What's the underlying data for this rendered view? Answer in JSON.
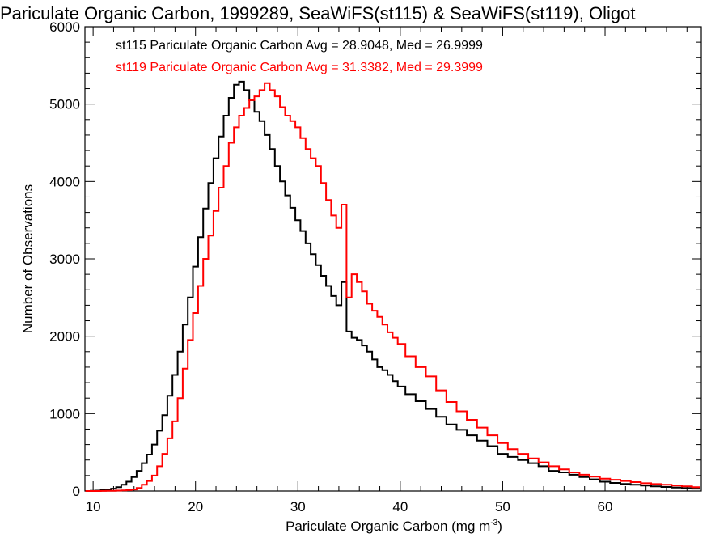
{
  "chart_data": {
    "type": "line",
    "style": "histogram-step",
    "title": "Pariculate Organic Carbon, 1999289, SeaWiFS(st115) & SeaWiFS(st119), Oligot",
    "xlabel": "Pariculate Organic Carbon (mg m",
    "xlabel_sup": "-3",
    "xlabel_close": ")",
    "ylabel": "Number of Observations",
    "xlim": [
      9.2,
      69.4
    ],
    "ylim": [
      0,
      6000
    ],
    "x_ticks": [
      10,
      20,
      30,
      40,
      50,
      60
    ],
    "x_tick_labels": [
      "10",
      "20",
      "30",
      "40",
      "50",
      "60"
    ],
    "y_ticks": [
      0,
      1000,
      2000,
      3000,
      4000,
      5000,
      6000
    ],
    "y_tick_labels": [
      "0",
      "1000",
      "2000",
      "3000",
      "4000",
      "5000",
      "6000"
    ],
    "grid": false,
    "legend_position": "top-left",
    "annotations": [
      {
        "text": "st115 Pariculate Organic Carbon Avg = 28.9048, Med = 26.9999",
        "color": "#000000"
      },
      {
        "text": "st119 Pariculate Organic Carbon Avg = 31.3382, Med = 29.3999",
        "color": "#ff0000"
      }
    ],
    "x": [
      9.5,
      10,
      10.5,
      11,
      11.5,
      12,
      12.5,
      13,
      13.5,
      14,
      14.5,
      15,
      15.5,
      16,
      16.5,
      17,
      17.5,
      18,
      18.5,
      19,
      19.5,
      20,
      20.5,
      21,
      21.5,
      22,
      22.5,
      23,
      23.5,
      24,
      24.5,
      25,
      25.5,
      26,
      26.5,
      27,
      27.5,
      28,
      28.5,
      29,
      29.5,
      30,
      30.5,
      31,
      31.5,
      32,
      32.5,
      33,
      33.5,
      34,
      34.5,
      35,
      35.5,
      36,
      36.5,
      37,
      37.5,
      38,
      38.5,
      39,
      39.5,
      40,
      41,
      42,
      43,
      44,
      45,
      46,
      47,
      48,
      49,
      50,
      51,
      52,
      53,
      54,
      55,
      56,
      57,
      58,
      59,
      60,
      61,
      62,
      63,
      64,
      65,
      66,
      67,
      68,
      69
    ],
    "series": [
      {
        "name": "st115",
        "color": "#000000",
        "values": [
          0,
          2,
          5,
          10,
          18,
          30,
          50,
          80,
          120,
          180,
          260,
          360,
          470,
          600,
          780,
          980,
          1230,
          1500,
          1800,
          2150,
          2500,
          2900,
          3280,
          3650,
          3980,
          4300,
          4580,
          4850,
          5080,
          5250,
          5290,
          5180,
          5050,
          4900,
          4780,
          4600,
          4420,
          4200,
          4000,
          3820,
          3660,
          3500,
          3360,
          3200,
          3060,
          2920,
          2780,
          2650,
          2520,
          2400,
          2700,
          2060,
          1980,
          1950,
          1880,
          1800,
          1700,
          1600,
          1560,
          1500,
          1420,
          1350,
          1250,
          1160,
          1060,
          960,
          860,
          790,
          720,
          650,
          580,
          480,
          440,
          400,
          360,
          320,
          260,
          240,
          210,
          180,
          150,
          120,
          105,
          92,
          80,
          70,
          60,
          52,
          45,
          38,
          30
        ]
      },
      {
        "name": "st119",
        "color": "#ff0000",
        "values": [
          0,
          0,
          0,
          1,
          2,
          3,
          5,
          8,
          12,
          20,
          40,
          80,
          130,
          200,
          320,
          480,
          680,
          900,
          1200,
          1580,
          1950,
          2300,
          2650,
          3000,
          3300,
          3620,
          3920,
          4200,
          4500,
          4700,
          4850,
          4950,
          5050,
          5100,
          5180,
          5270,
          5180,
          5100,
          4960,
          4850,
          4780,
          4700,
          4560,
          4420,
          4300,
          4200,
          3980,
          3760,
          3560,
          3400,
          3700,
          2500,
          2800,
          2700,
          2580,
          2420,
          2330,
          2250,
          2150,
          2050,
          1980,
          1900,
          1740,
          1600,
          1480,
          1300,
          1150,
          1030,
          920,
          820,
          720,
          620,
          540,
          480,
          420,
          370,
          320,
          280,
          240,
          210,
          185,
          160,
          145,
          130,
          115,
          100,
          90,
          80,
          70,
          60,
          50
        ]
      }
    ],
    "spike": {
      "x": 34.7,
      "st119_value": 3680,
      "st115_value": 2400
    }
  }
}
